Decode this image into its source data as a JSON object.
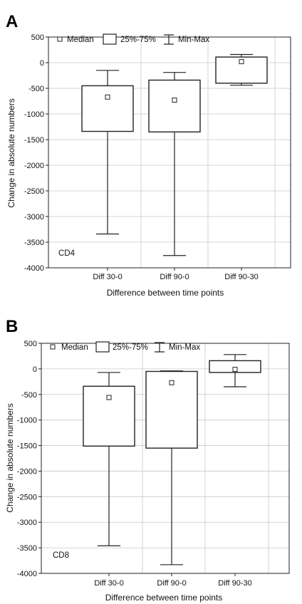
{
  "chart_data": [
    {
      "type": "box",
      "panel_label": "A",
      "annotation": "CD4",
      "xlabel": "Difference between time points",
      "ylabel": "Change in absolute numbers",
      "ylim": [
        -4000,
        500
      ],
      "yticks": [
        500,
        0,
        -500,
        -1000,
        -1500,
        -2000,
        -2500,
        -3000,
        -3500,
        -4000
      ],
      "grid": true,
      "legend_position": "top-left",
      "legend": [
        "Median",
        "25%-75%",
        "Min-Max"
      ],
      "categories": [
        "Diff 30-0",
        "Diff 90-0",
        "Diff 90-30"
      ],
      "boxes": [
        {
          "median": -670,
          "q1": -1340,
          "q3": -450,
          "min": -3340,
          "max": -150
        },
        {
          "median": -730,
          "q1": -1350,
          "q3": -340,
          "min": -3760,
          "max": -190
        },
        {
          "median": 20,
          "q1": -400,
          "q3": 110,
          "min": -440,
          "max": 160
        }
      ]
    },
    {
      "type": "box",
      "panel_label": "B",
      "annotation": "CD8",
      "xlabel": "Difference between time points",
      "ylabel": "Change in absolute numbers",
      "ylim": [
        -4000,
        500
      ],
      "yticks": [
        500,
        0,
        -500,
        -1000,
        -1500,
        -2000,
        -2500,
        -3000,
        -3500,
        -4000
      ],
      "grid": true,
      "legend_position": "top-left",
      "legend": [
        "Median",
        "25%-75%",
        "Min-Max"
      ],
      "categories": [
        "Diff 30-0",
        "Diff 90-0",
        "Diff 90-30"
      ],
      "boxes": [
        {
          "median": -560,
          "q1": -1510,
          "q3": -340,
          "min": -3460,
          "max": -70
        },
        {
          "median": -270,
          "q1": -1550,
          "q3": -50,
          "min": -3830,
          "max": -40
        },
        {
          "median": -10,
          "q1": -70,
          "q3": 160,
          "min": -350,
          "max": 280
        }
      ]
    }
  ]
}
